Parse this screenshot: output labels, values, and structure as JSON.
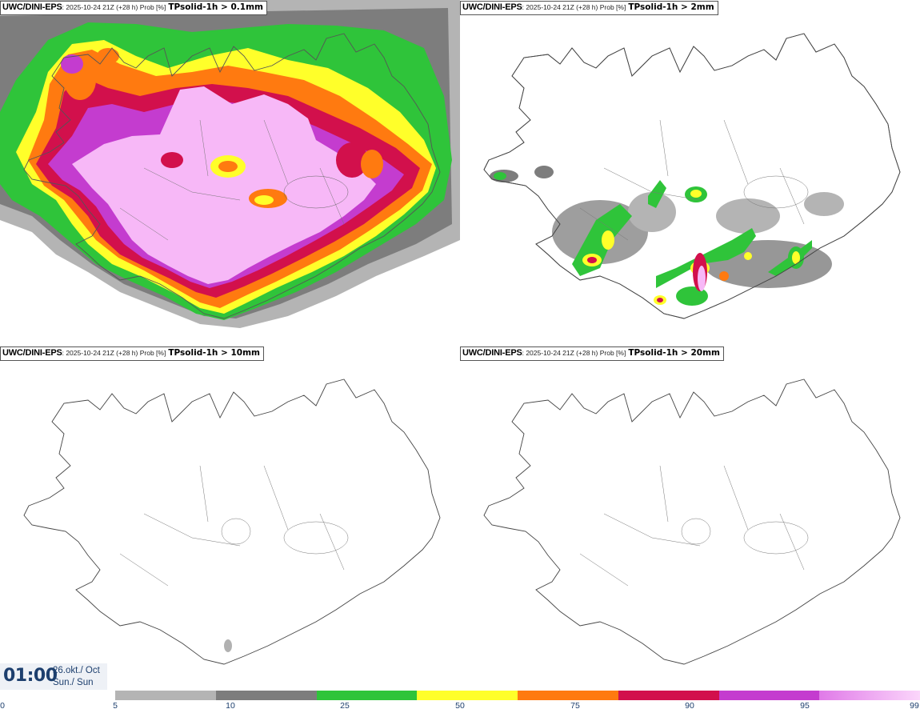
{
  "panels": [
    {
      "model": "UWC/DINI-EPS",
      "meta": ": 2025-10-24 21Z (+28 h) Prob [%]",
      "field": "TPsolid-1h > 0.1mm"
    },
    {
      "model": "UWC/DINI-EPS",
      "meta": ": 2025-10-24 21Z (+28 h) Prob [%]",
      "field": "TPsolid-1h > 2mm"
    },
    {
      "model": "UWC/DINI-EPS",
      "meta": ": 2025-10-24 21Z (+28 h) Prob [%]",
      "field": "TPsolid-1h > 10mm"
    },
    {
      "model": "UWC/DINI-EPS",
      "meta": ": 2025-10-24 21Z (+28 h) Prob [%]",
      "field": "TPsolid-1h > 20mm"
    }
  ],
  "valid_time": {
    "time": "01:00",
    "date_line1": "26.okt./ Oct",
    "date_line2": "Sun./ Sun"
  },
  "legend": {
    "ticks": [
      "0",
      "5",
      "10",
      "25",
      "50",
      "75",
      "90",
      "95",
      "99"
    ],
    "colors": [
      "#b4b4b4",
      "#7d7d7d",
      "#2fc43a",
      "#ffff2a",
      "#ff7a10",
      "#d2104c",
      "#c43ccf",
      "#f7b8f7"
    ]
  }
}
